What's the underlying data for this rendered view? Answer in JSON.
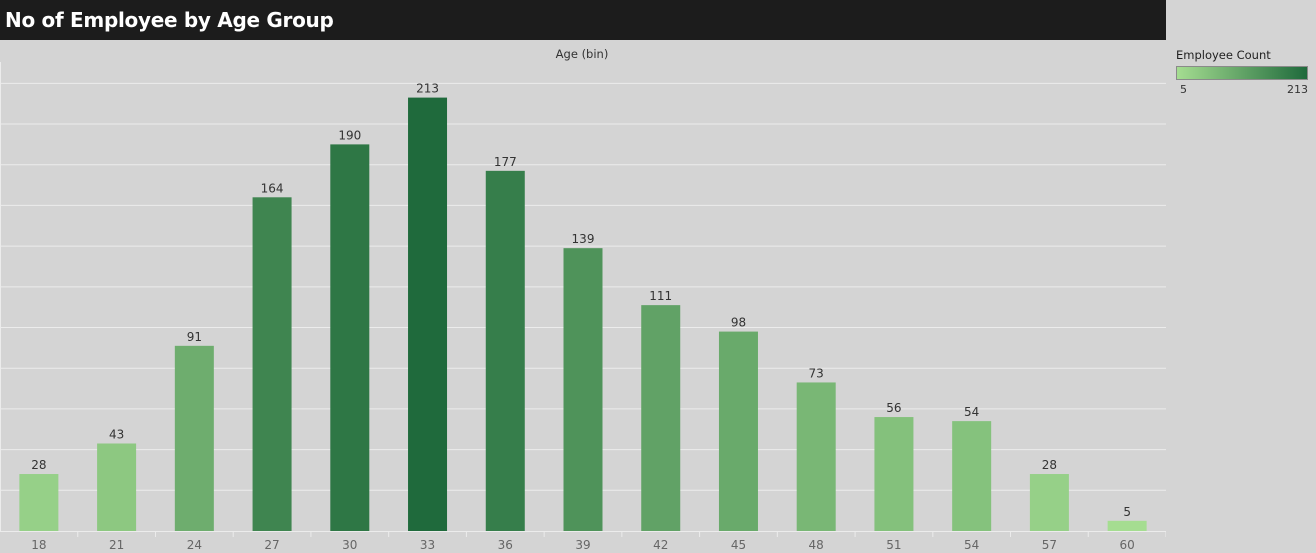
{
  "title": "No of Employee by Age Group",
  "legend": {
    "title": "Employee Count",
    "min_label": "5",
    "max_label": "213",
    "color_low": "#a5dd91",
    "color_high": "#1f6a3c"
  },
  "chart_data": {
    "type": "bar",
    "xlabel": "Age (bin)",
    "ylabel": "",
    "categories": [
      "18",
      "21",
      "24",
      "27",
      "30",
      "33",
      "36",
      "39",
      "42",
      "45",
      "48",
      "51",
      "54",
      "57",
      "60"
    ],
    "values": [
      28,
      43,
      91,
      164,
      190,
      213,
      177,
      139,
      111,
      98,
      73,
      56,
      54,
      28,
      5
    ],
    "ylim": [
      0,
      230
    ],
    "grid": true,
    "data_labels": true,
    "color_encoding": "sequential green by value"
  }
}
